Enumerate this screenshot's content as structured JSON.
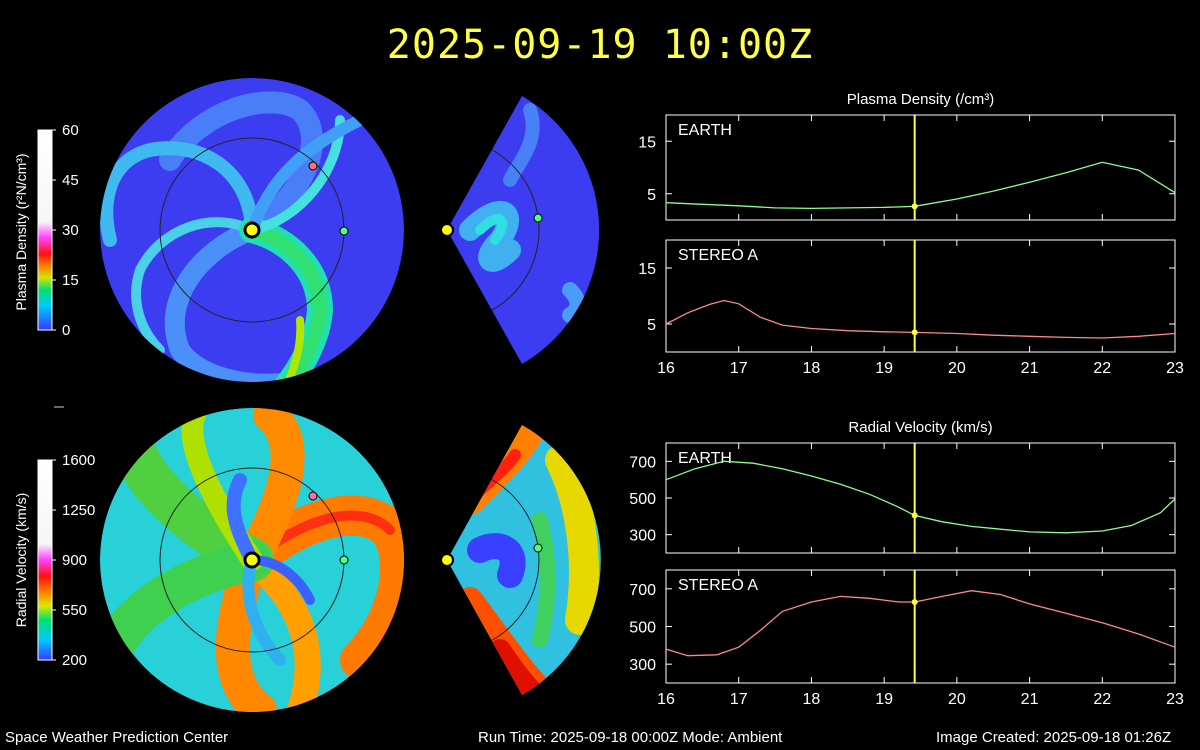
{
  "title": "2025-09-19 10:00Z",
  "footer": {
    "org": "Space Weather Prediction Center",
    "run_time": "Run Time: 2025-09-18 00:00Z  Mode: Ambient",
    "created": "Image Created: 2025-09-18 01:26Z"
  },
  "colorbars": {
    "density": {
      "label": "Plasma Density (r²N/cm³)",
      "ticks": [
        "60",
        "45",
        "30",
        "15",
        "0"
      ]
    },
    "velocity": {
      "label": "Radial Velocity (km/s)",
      "ticks": [
        "1600",
        "1250",
        "900",
        "550",
        "200"
      ]
    }
  },
  "colors": {
    "background": "#000000",
    "title": "#ffff44",
    "earth_line": "#88ff88",
    "stereo_line": "#ff8888",
    "marker": "#ffff44"
  },
  "current_time_day": 19.42,
  "chart_data": [
    {
      "type": "line",
      "title": "Plasma Density (/cm³)",
      "panel": "EARTH",
      "x": [
        16,
        16.5,
        17,
        17.5,
        18,
        18.5,
        19,
        19.42,
        20,
        20.5,
        21,
        21.5,
        22,
        22.5,
        23
      ],
      "y": [
        3.3,
        3.0,
        2.7,
        2.3,
        2.2,
        2.3,
        2.4,
        2.6,
        4,
        5.5,
        7.2,
        9.0,
        11.0,
        9.5,
        5.2
      ],
      "xlim": [
        16,
        23
      ],
      "ylim": [
        0,
        20
      ],
      "yticks": [
        "15",
        "5"
      ],
      "xticks": [
        "16",
        "17",
        "18",
        "19",
        "20",
        "21",
        "22",
        "23"
      ]
    },
    {
      "type": "line",
      "panel": "STEREO A",
      "x": [
        16,
        16.3,
        16.6,
        16.8,
        17,
        17.3,
        17.6,
        18,
        18.5,
        19,
        19.42,
        20,
        20.5,
        21,
        21.5,
        22,
        22.5,
        23
      ],
      "y": [
        5,
        7,
        8.5,
        9.2,
        8.6,
        6.2,
        4.8,
        4.2,
        3.8,
        3.6,
        3.5,
        3.3,
        3.0,
        2.8,
        2.6,
        2.5,
        2.8,
        3.3
      ],
      "xlim": [
        16,
        23
      ],
      "ylim": [
        0,
        20
      ],
      "yticks": [
        "15",
        "5"
      ],
      "xticks": [
        "16",
        "17",
        "18",
        "19",
        "20",
        "21",
        "22",
        "23"
      ]
    },
    {
      "type": "line",
      "title": "Radial Velocity (km/s)",
      "panel": "EARTH",
      "x": [
        16,
        16.4,
        16.8,
        17.2,
        17.6,
        18,
        18.4,
        18.8,
        19.2,
        19.42,
        19.8,
        20.2,
        20.6,
        21,
        21.5,
        22,
        22.4,
        22.8,
        23
      ],
      "y": [
        600,
        660,
        700,
        690,
        660,
        620,
        575,
        520,
        450,
        405,
        370,
        345,
        330,
        315,
        310,
        320,
        350,
        420,
        495
      ],
      "xlim": [
        16,
        23
      ],
      "ylim": [
        200,
        800
      ],
      "yticks": [
        "700",
        "500",
        "300"
      ],
      "xticks": [
        "16",
        "17",
        "18",
        "19",
        "20",
        "21",
        "22",
        "23"
      ]
    },
    {
      "type": "line",
      "panel": "STEREO A",
      "x": [
        16,
        16.3,
        16.7,
        17.0,
        17.3,
        17.6,
        18,
        18.4,
        18.8,
        19.2,
        19.42,
        19.8,
        20.2,
        20.6,
        21,
        21.5,
        22,
        22.5,
        23
      ],
      "y": [
        380,
        345,
        350,
        390,
        480,
        580,
        630,
        660,
        650,
        630,
        630,
        660,
        690,
        670,
        620,
        570,
        520,
        460,
        390
      ],
      "xlim": [
        16,
        23
      ],
      "ylim": [
        200,
        800
      ],
      "yticks": [
        "700",
        "500",
        "300"
      ],
      "xticks": [
        "16",
        "17",
        "18",
        "19",
        "20",
        "21",
        "22",
        "23"
      ]
    }
  ]
}
